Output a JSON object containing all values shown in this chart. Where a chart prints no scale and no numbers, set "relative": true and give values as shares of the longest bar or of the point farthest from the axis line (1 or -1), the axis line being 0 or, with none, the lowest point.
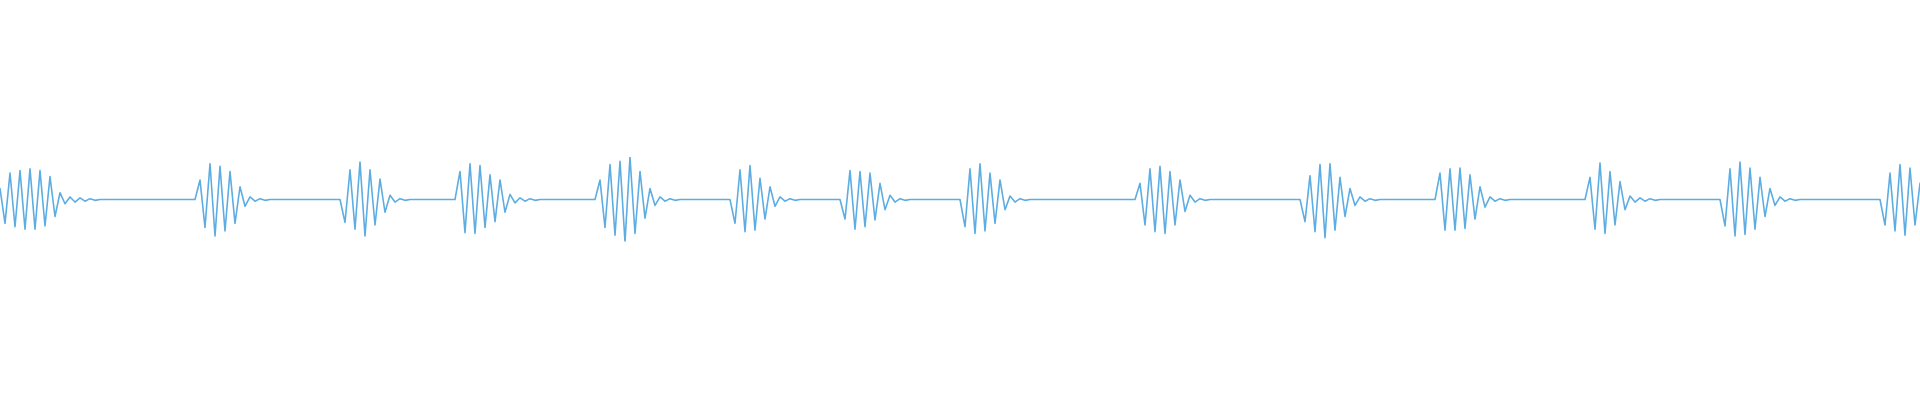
{
  "chart_data": {
    "type": "line",
    "relative": true,
    "color": "#5dade2",
    "categories": [
      null,
      null,
      null,
      null,
      null,
      null,
      null,
      null,
      null,
      null,
      null,
      null,
      null,
      null,
      null,
      null,
      null,
      null,
      null,
      null,
      null,
      null,
      null,
      null,
      null,
      null,
      null,
      null,
      null,
      null,
      null,
      null,
      null,
      null,
      null,
      null,
      null,
      null,
      null,
      null,
      null,
      null,
      null,
      null,
      null,
      null,
      null,
      null,
      null,
      null,
      null,
      null,
      null,
      null,
      null,
      null,
      null,
      null,
      null,
      null,
      null,
      null,
      null,
      null,
      null,
      null,
      null,
      null,
      null,
      null,
      null,
      null,
      null,
      null,
      null,
      null,
      null,
      null,
      null,
      null,
      null,
      null,
      null,
      null,
      null,
      null,
      null,
      null,
      null,
      null,
      null,
      null,
      null,
      null,
      null,
      null,
      null,
      null,
      null,
      null,
      null,
      null,
      null,
      null,
      null,
      null,
      null,
      null,
      null,
      null,
      null,
      null,
      null,
      null,
      null,
      null,
      null,
      null,
      null,
      null,
      null,
      null,
      null,
      null,
      null,
      null,
      null,
      null,
      null,
      null,
      null,
      null,
      null,
      null,
      null,
      null,
      null,
      null,
      null,
      null,
      null,
      null,
      null,
      null,
      null,
      null,
      null,
      null,
      null,
      null,
      null,
      null,
      null,
      null,
      null,
      null,
      null,
      null,
      null,
      null,
      null,
      null,
      null,
      null,
      null,
      null,
      null,
      null,
      null,
      null,
      null,
      null,
      null,
      null,
      null,
      null,
      null,
      null,
      null,
      null,
      null,
      null,
      null,
      null,
      null,
      null,
      null,
      null,
      null,
      null,
      null,
      null,
      null,
      null,
      null,
      null,
      null,
      null,
      null,
      null,
      null,
      null,
      null,
      null,
      null,
      null,
      null,
      null,
      null,
      null,
      null,
      null,
      null,
      null,
      null,
      null,
      null,
      null,
      null,
      null,
      null,
      null,
      null,
      null,
      null,
      null,
      null,
      null,
      null,
      null,
      null,
      null,
      null,
      null,
      null,
      null,
      null,
      null,
      null,
      null,
      null,
      null,
      null,
      null,
      null,
      null,
      null,
      null,
      null,
      null,
      null,
      null,
      null,
      null,
      null,
      null,
      null,
      null,
      null,
      null,
      null,
      null,
      null,
      null,
      null,
      null,
      null,
      null,
      null,
      null,
      null,
      null,
      null,
      null,
      null,
      null,
      null,
      null,
      null,
      null,
      null,
      null,
      null,
      null,
      null,
      null,
      null,
      null,
      null,
      null,
      null,
      null,
      null,
      null,
      null,
      null,
      null,
      null,
      null,
      null,
      null,
      null,
      null,
      null,
      null,
      null,
      null,
      null,
      null,
      null,
      null,
      null,
      null,
      null,
      null,
      null,
      null,
      null,
      null,
      null,
      null,
      null,
      null,
      null,
      null,
      null,
      null,
      null,
      null,
      null,
      null,
      null,
      null,
      null,
      null,
      null,
      null,
      null,
      null,
      null,
      null,
      null,
      null,
      null,
      null,
      null,
      null,
      null,
      null,
      null,
      null,
      null,
      null,
      null,
      null,
      null,
      null,
      null,
      null,
      null,
      null,
      null,
      null,
      null,
      null,
      null,
      null,
      null,
      null,
      null,
      null,
      null,
      null,
      null,
      null,
      null,
      null,
      null,
      null,
      null,
      null,
      null,
      null,
      null,
      null
    ],
    "values": [
      0.63,
      0.22,
      0.81,
      0.18,
      0.84,
      0.15,
      0.86,
      0.15,
      0.84,
      0.19,
      0.77,
      0.3,
      0.58,
      0.45,
      0.53,
      0.47,
      0.52,
      0.48,
      0.51,
      0.49,
      0.5,
      0.5,
      0.5,
      0.5,
      0.5,
      0.5,
      0.5,
      0.5,
      0.5,
      0.5,
      0.5,
      0.5,
      0.5,
      0.5,
      0.5,
      0.5,
      0.5,
      0.5,
      0.5,
      0.5,
      0.73,
      0.17,
      0.92,
      0.07,
      0.89,
      0.13,
      0.83,
      0.22,
      0.65,
      0.42,
      0.53,
      0.48,
      0.51,
      0.49,
      0.5,
      0.5,
      0.5,
      0.5,
      0.5,
      0.5,
      0.5,
      0.5,
      0.5,
      0.5,
      0.5,
      0.5,
      0.5,
      0.5,
      0.5,
      0.23,
      0.85,
      0.15,
      0.94,
      0.07,
      0.85,
      0.2,
      0.74,
      0.35,
      0.55,
      0.47,
      0.51,
      0.49,
      0.5,
      0.5,
      0.5,
      0.5,
      0.5,
      0.5,
      0.5,
      0.5,
      0.5,
      0.5,
      0.83,
      0.11,
      0.92,
      0.1,
      0.9,
      0.17,
      0.79,
      0.24,
      0.73,
      0.35,
      0.56,
      0.46,
      0.52,
      0.48,
      0.51,
      0.49,
      0.5,
      0.5,
      0.5,
      0.5,
      0.5,
      0.5,
      0.5,
      0.5,
      0.5,
      0.5,
      0.5,
      0.5,
      0.73,
      0.17,
      0.91,
      0.08,
      0.95,
      0,
      1,
      0.1,
      0.83,
      0.28,
      0.63,
      0.43,
      0.53,
      0.48,
      0.51,
      0.49,
      0.5,
      0.5,
      0.5,
      0.5,
      0.5,
      0.5,
      0.5,
      0.5,
      0.5,
      0.5,
      0.5,
      0.22,
      0.85,
      0.12,
      0.9,
      0.14,
      0.75,
      0.27,
      0.65,
      0.42,
      0.53,
      0.48,
      0.51,
      0.49,
      0.5,
      0.5,
      0.5,
      0.5,
      0.5,
      0.5,
      0.5,
      0.5,
      0.5,
      0.27,
      0.84,
      0.15,
      0.83,
      0.18,
      0.81,
      0.26,
      0.69,
      0.38,
      0.55,
      0.47,
      0.51,
      0.49,
      0.5,
      0.5,
      0.5,
      0.5,
      0.5,
      0.5,
      0.5,
      0.5,
      0.5,
      0.5,
      0.5,
      0.18,
      0.86,
      0.1,
      0.92,
      0.13,
      0.81,
      0.22,
      0.73,
      0.38,
      0.54,
      0.47,
      0.51,
      0.49,
      0.5,
      0.5,
      0.5,
      0.5,
      0.5,
      0.5,
      0.5,
      0.5,
      0.5,
      0.5,
      0.5,
      0.5,
      0.5,
      0.5,
      0.5,
      0.5,
      0.5,
      0.5,
      0.5,
      0.5,
      0.5,
      0.5,
      0.69,
      0.2,
      0.86,
      0.12,
      0.89,
      0.1,
      0.83,
      0.2,
      0.73,
      0.36,
      0.55,
      0.47,
      0.51,
      0.49,
      0.5,
      0.5,
      0.5,
      0.5,
      0.5,
      0.5,
      0.5,
      0.5,
      0.5,
      0.5,
      0.5,
      0.5,
      0.5,
      0.5,
      0.5,
      0.5,
      0.5,
      0.5,
      0.5,
      0.24,
      0.78,
      0.12,
      0.91,
      0.05,
      0.92,
      0.14,
      0.76,
      0.3,
      0.63,
      0.43,
      0.53,
      0.48,
      0.51,
      0.49,
      0.5,
      0.5,
      0.5,
      0.5,
      0.5,
      0.5,
      0.5,
      0.5,
      0.5,
      0.5,
      0.5,
      0.5,
      0.81,
      0.14,
      0.86,
      0.14,
      0.87,
      0.16,
      0.79,
      0.27,
      0.65,
      0.41,
      0.53,
      0.48,
      0.51,
      0.49,
      0.5,
      0.5,
      0.5,
      0.5,
      0.5,
      0.5,
      0.5,
      0.5,
      0.5,
      0.5,
      0.5,
      0.5,
      0.5,
      0.5,
      0.5,
      0.5,
      0.76,
      0.15,
      0.93,
      0.1,
      0.83,
      0.2,
      0.71,
      0.38,
      0.54,
      0.47,
      0.52,
      0.48,
      0.51,
      0.49,
      0.5,
      0.5,
      0.5,
      0.5,
      0.5,
      0.5,
      0.5,
      0.5,
      0.5,
      0.5,
      0.5,
      0.5,
      0.5,
      0.19,
      0.86,
      0.07,
      0.94,
      0.09,
      0.87,
      0.15,
      0.76,
      0.3,
      0.63,
      0.43,
      0.53,
      0.48,
      0.51,
      0.49,
      0.5,
      0.5,
      0.5,
      0.5,
      0.5,
      0.5,
      0.5,
      0.5,
      0.5,
      0.5,
      0.5,
      0.5,
      0.5,
      0.5,
      0.5,
      0.5,
      0.5,
      0.2,
      0.81,
      0.13,
      0.91,
      0.08,
      0.87,
      0.2,
      0.69
    ]
  }
}
